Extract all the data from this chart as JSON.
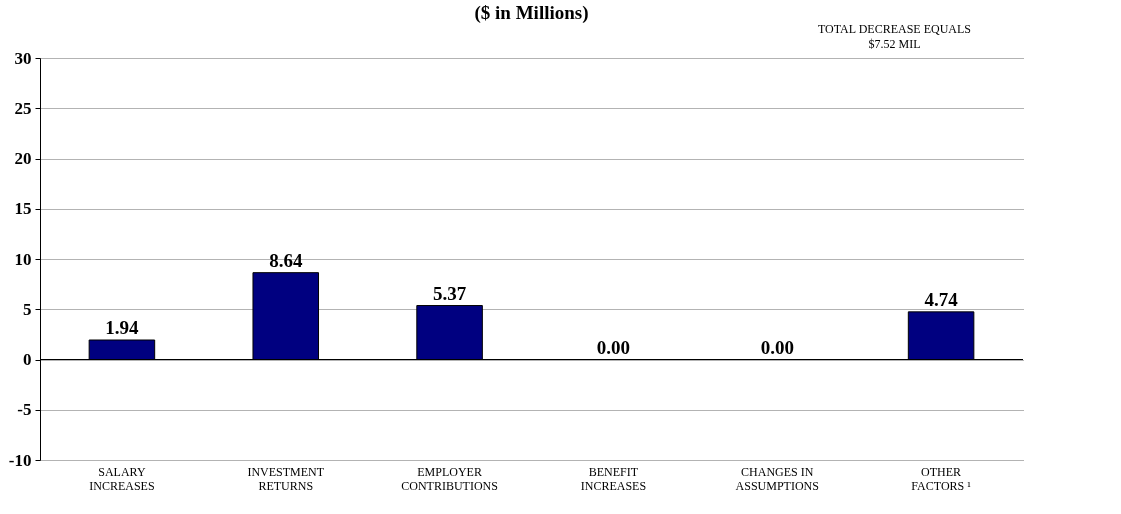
{
  "chart_data": {
    "type": "bar",
    "title": "($ in Millions)",
    "annotations": [
      "TOTAL DECREASE EQUALS\n$7.52 MIL"
    ],
    "categories": [
      "SALARY\nINCREASES",
      "INVESTMENT\nRETURNS",
      "EMPLOYER\nCONTRIBUTIONS",
      "BENEFIT\nINCREASES",
      "CHANGES IN\nASSUMPTIONS",
      "OTHER\nFACTORS ¹"
    ],
    "values": [
      1.94,
      8.64,
      5.37,
      0.0,
      0.0,
      4.74
    ],
    "color": "#000080",
    "value_labels": [
      "1.94",
      "8.64",
      "5.37",
      "0.00",
      "0.00",
      "4.74"
    ],
    "ylim": [
      -10,
      30
    ],
    "yticks": [
      -10,
      -5,
      0,
      5,
      10,
      15,
      20,
      25,
      30
    ],
    "grid": "y"
  }
}
